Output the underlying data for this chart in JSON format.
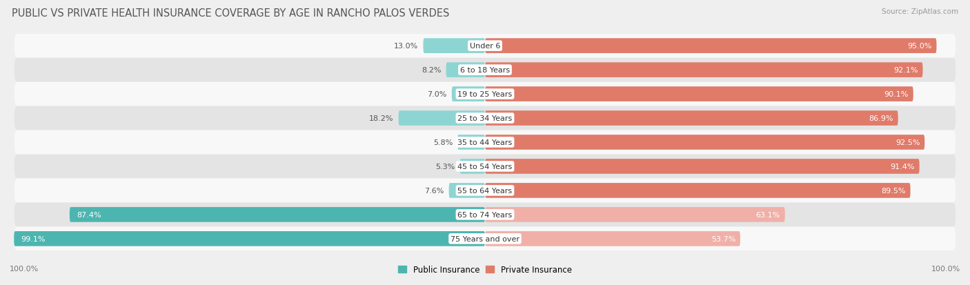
{
  "title": "PUBLIC VS PRIVATE HEALTH INSURANCE COVERAGE BY AGE IN RANCHO PALOS VERDES",
  "source": "Source: ZipAtlas.com",
  "categories": [
    "Under 6",
    "6 to 18 Years",
    "19 to 25 Years",
    "25 to 34 Years",
    "35 to 44 Years",
    "45 to 54 Years",
    "55 to 64 Years",
    "65 to 74 Years",
    "75 Years and over"
  ],
  "public_values": [
    13.0,
    8.2,
    7.0,
    18.2,
    5.8,
    5.3,
    7.6,
    87.4,
    99.1
  ],
  "private_values": [
    95.0,
    92.1,
    90.1,
    86.9,
    92.5,
    91.4,
    89.5,
    63.1,
    53.7
  ],
  "public_color_strong": "#4db5b0",
  "public_color_light": "#8dd5d2",
  "private_color_strong": "#e07b6a",
  "private_color_light": "#f0b0a8",
  "bar_height": 0.62,
  "background_color": "#efefef",
  "row_bg_odd": "#f8f8f8",
  "row_bg_even": "#e4e4e4",
  "max_value": 100.0,
  "legend_public": "Public Insurance",
  "legend_private": "Private Insurance",
  "title_fontsize": 10.5,
  "label_fontsize": 8,
  "category_fontsize": 8,
  "source_fontsize": 7.5
}
